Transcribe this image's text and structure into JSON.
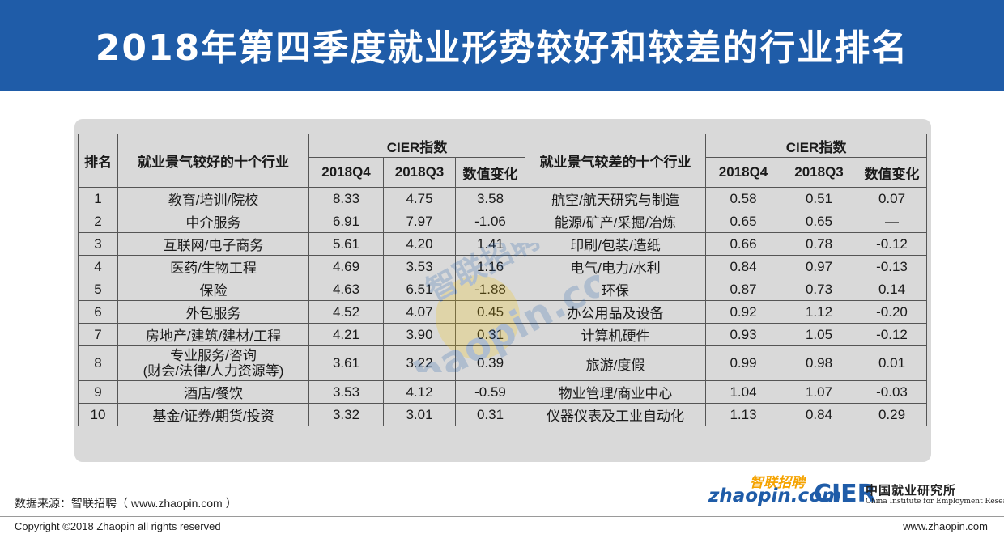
{
  "title": "2018年第四季度就业形势较好和较差的行业排名",
  "colors": {
    "header_bg": "#1f5ca8",
    "panel_bg": "#d9d9d9",
    "logo_orange": "#f5a300"
  },
  "table": {
    "rank_header": "排名",
    "good_header": "就业景气较好的十个行业",
    "bad_header": "就业景气较差的十个行业",
    "index_header": "CIER指数",
    "sub_headers": [
      "2018Q4",
      "2018Q3",
      "数值变化"
    ],
    "good_rows": [
      {
        "rank": "1",
        "industry": "教育/培训/院校",
        "q4": "8.33",
        "q3": "4.75",
        "change": "3.58"
      },
      {
        "rank": "2",
        "industry": "中介服务",
        "q4": "6.91",
        "q3": "7.97",
        "change": "-1.06"
      },
      {
        "rank": "3",
        "industry": "互联网/电子商务",
        "q4": "5.61",
        "q3": "4.20",
        "change": "1.41"
      },
      {
        "rank": "4",
        "industry": "医药/生物工程",
        "q4": "4.69",
        "q3": "3.53",
        "change": "1.16"
      },
      {
        "rank": "5",
        "industry": "保险",
        "q4": "4.63",
        "q3": "6.51",
        "change": "-1.88"
      },
      {
        "rank": "6",
        "industry": "外包服务",
        "q4": "4.52",
        "q3": "4.07",
        "change": "0.45"
      },
      {
        "rank": "7",
        "industry": "房地产/建筑/建材/工程",
        "q4": "4.21",
        "q3": "3.90",
        "change": "0.31"
      },
      {
        "rank": "8",
        "industry": "专业服务/咨询",
        "industry_line2": "(财会/法律/人力资源等)",
        "q4": "3.61",
        "q3": "3.22",
        "change": "0.39"
      },
      {
        "rank": "9",
        "industry": "酒店/餐饮",
        "q4": "3.53",
        "q3": "4.12",
        "change": "-0.59"
      },
      {
        "rank": "10",
        "industry": "基金/证券/期货/投资",
        "q4": "3.32",
        "q3": "3.01",
        "change": "0.31"
      }
    ],
    "bad_rows": [
      {
        "industry": "航空/航天研究与制造",
        "q4": "0.58",
        "q3": "0.51",
        "change": "0.07"
      },
      {
        "industry": "能源/矿产/采掘/冶炼",
        "q4": "0.65",
        "q3": "0.65",
        "change": "—"
      },
      {
        "industry": "印刷/包装/造纸",
        "q4": "0.66",
        "q3": "0.78",
        "change": "-0.12"
      },
      {
        "industry": "电气/电力/水利",
        "q4": "0.84",
        "q3": "0.97",
        "change": "-0.13"
      },
      {
        "industry": "环保",
        "q4": "0.87",
        "q3": "0.73",
        "change": "0.14"
      },
      {
        "industry": "办公用品及设备",
        "q4": "0.92",
        "q3": "1.12",
        "change": "-0.20"
      },
      {
        "industry": "计算机硬件",
        "q4": "0.93",
        "q3": "1.05",
        "change": "-0.12"
      },
      {
        "industry": "旅游/度假",
        "q4": "0.99",
        "q3": "0.98",
        "change": "0.01"
      },
      {
        "industry": "物业管理/商业中心",
        "q4": "1.04",
        "q3": "1.07",
        "change": "-0.03"
      },
      {
        "industry": "仪器仪表及工业自动化",
        "q4": "1.13",
        "q3": "0.84",
        "change": "0.29"
      }
    ]
  },
  "watermark": {
    "text_en": "zhaopin.com",
    "text_cn": "智联招聘"
  },
  "footer": {
    "source": "数据来源：智联招聘（ www.zhaopin.com ）",
    "copyright": "Copyright ©2018 Zhaopin all rights reserved",
    "url": "www.zhaopin.com"
  },
  "logos": {
    "zhaopin_cn": "智联招聘",
    "zhaopin_en": "zhaopin.com",
    "cier_abbr": "CIER",
    "cier_cn": "中国就业研究所",
    "cier_en": "China Institute for Employment Research"
  }
}
